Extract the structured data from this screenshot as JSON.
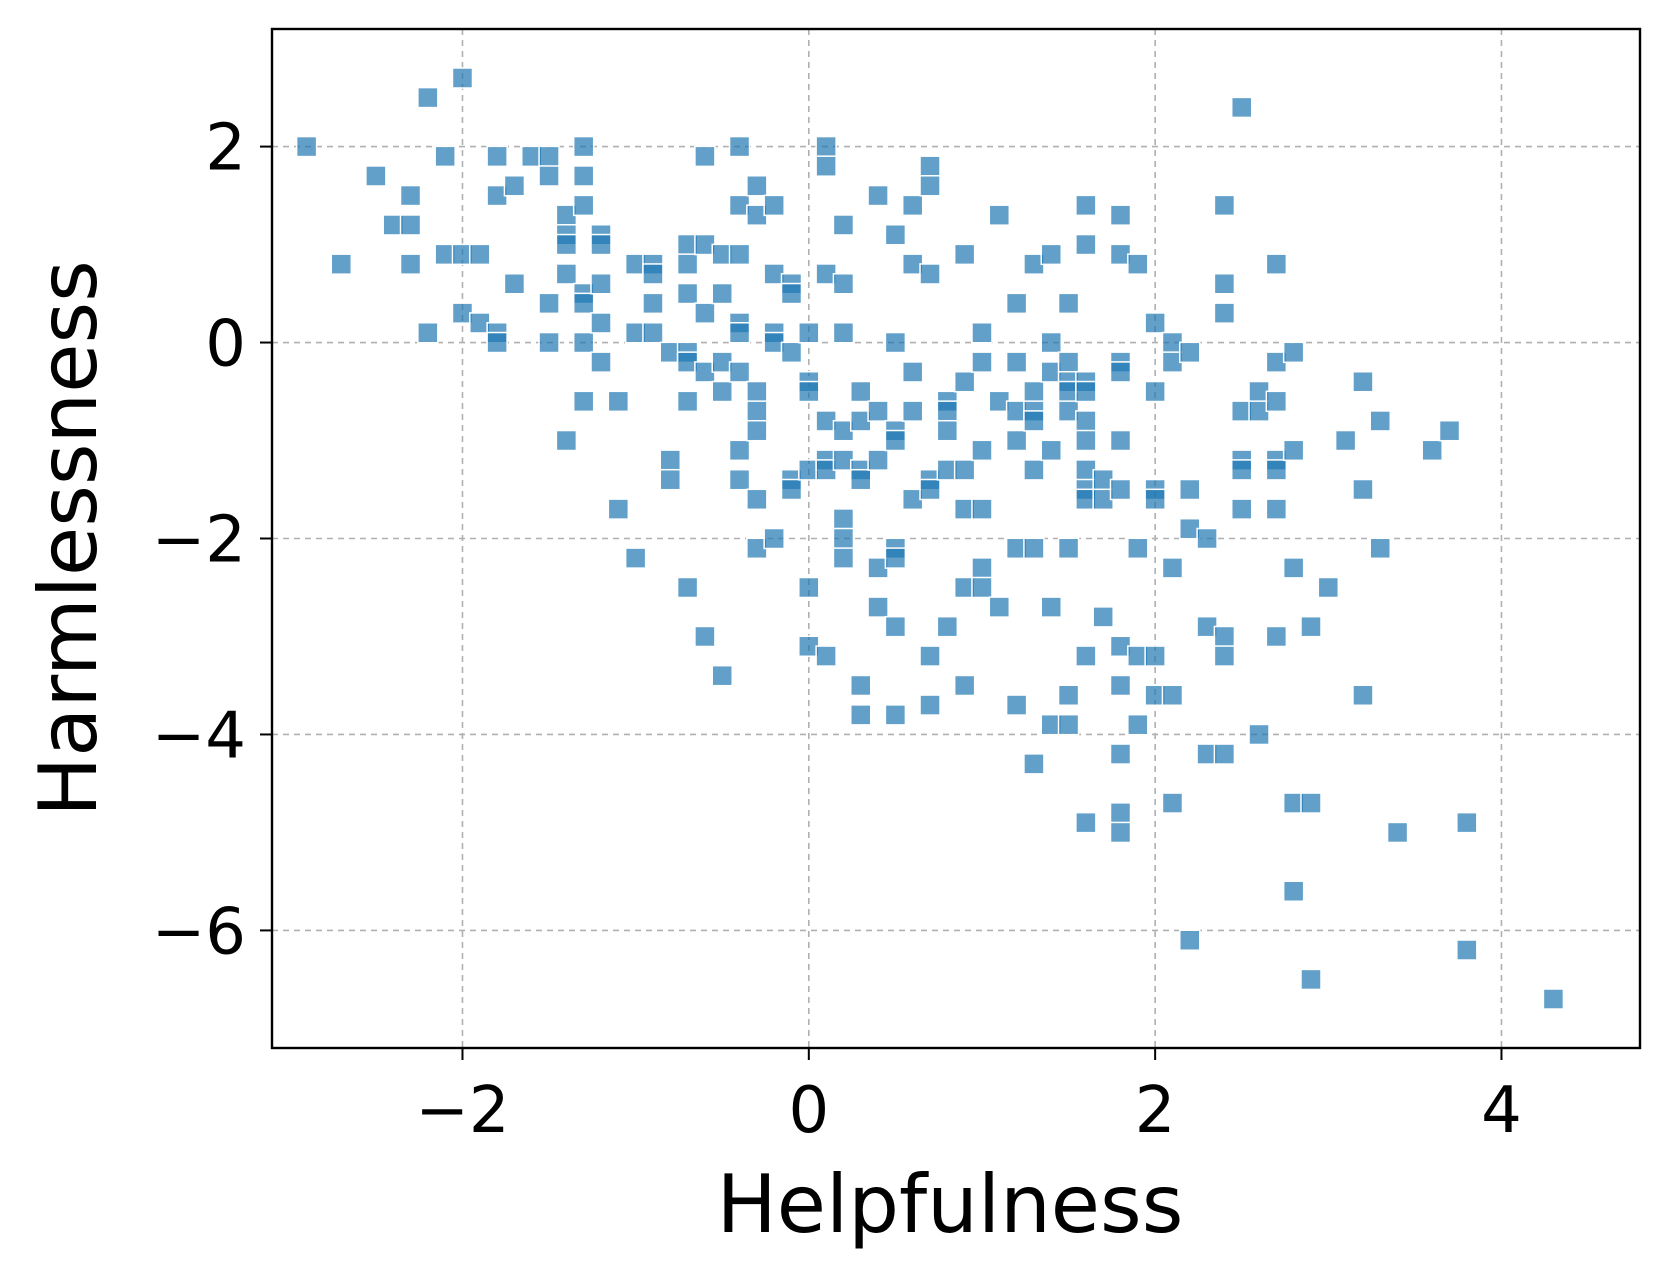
{
  "chart_data": {
    "type": "scatter",
    "xlabel": "Helpfulness",
    "ylabel": "Harmlessness",
    "xlim": [
      -3.1,
      4.8
    ],
    "ylim": [
      -7.2,
      3.2
    ],
    "xticks": [
      -2,
      0,
      2,
      4
    ],
    "yticks": [
      2,
      0,
      -2,
      -4,
      -6
    ],
    "xtick_labels": [
      "−2",
      "0",
      "2",
      "4"
    ],
    "ytick_labels": [
      "2",
      "0",
      "−2",
      "−4",
      "−6"
    ],
    "grid": true,
    "marker": "square",
    "color": "#1f77b4",
    "alpha": 0.7,
    "points": [
      [
        -2.9,
        2.0
      ],
      [
        -2.7,
        0.8
      ],
      [
        -2.5,
        1.7
      ],
      [
        -2.4,
        1.2
      ],
      [
        -2.3,
        1.5
      ],
      [
        -2.3,
        1.2
      ],
      [
        -2.3,
        0.8
      ],
      [
        -2.2,
        2.5
      ],
      [
        -2.2,
        0.1
      ],
      [
        -2.1,
        1.9
      ],
      [
        -2.1,
        0.9
      ],
      [
        -2.0,
        2.7
      ],
      [
        -2.0,
        0.9
      ],
      [
        -2.0,
        0.3
      ],
      [
        -1.9,
        0.9
      ],
      [
        -1.9,
        0.2
      ],
      [
        -1.8,
        1.9
      ],
      [
        -1.8,
        1.5
      ],
      [
        -1.8,
        0.1
      ],
      [
        -1.8,
        0.0
      ],
      [
        -1.7,
        1.6
      ],
      [
        -1.7,
        0.6
      ],
      [
        -1.6,
        1.9
      ],
      [
        -1.5,
        1.9
      ],
      [
        -1.5,
        1.7
      ],
      [
        -1.5,
        0.4
      ],
      [
        -1.5,
        0.0
      ],
      [
        -1.4,
        1.3
      ],
      [
        -1.4,
        1.1
      ],
      [
        -1.4,
        1.0
      ],
      [
        -1.4,
        0.7
      ],
      [
        -1.4,
        -1.0
      ],
      [
        -1.3,
        2.0
      ],
      [
        -1.3,
        1.7
      ],
      [
        -1.3,
        1.4
      ],
      [
        -1.3,
        0.5
      ],
      [
        -1.3,
        0.4
      ],
      [
        -1.3,
        0.0
      ],
      [
        -1.3,
        -0.6
      ],
      [
        -1.2,
        1.1
      ],
      [
        -1.2,
        1.0
      ],
      [
        -1.2,
        0.6
      ],
      [
        -1.2,
        0.2
      ],
      [
        -1.2,
        -0.2
      ],
      [
        -1.1,
        -0.6
      ],
      [
        -1.1,
        -1.7
      ],
      [
        -1.0,
        0.8
      ],
      [
        -1.0,
        0.1
      ],
      [
        -1.0,
        -2.2
      ],
      [
        -0.9,
        0.8
      ],
      [
        -0.9,
        0.7
      ],
      [
        -0.9,
        0.4
      ],
      [
        -0.9,
        0.1
      ],
      [
        -0.8,
        -0.1
      ],
      [
        -0.8,
        -1.2
      ],
      [
        -0.8,
        -1.4
      ],
      [
        -0.7,
        1.0
      ],
      [
        -0.7,
        0.8
      ],
      [
        -0.7,
        0.5
      ],
      [
        -0.7,
        -0.1
      ],
      [
        -0.7,
        -0.2
      ],
      [
        -0.7,
        -0.6
      ],
      [
        -0.7,
        -2.5
      ],
      [
        -0.6,
        1.9
      ],
      [
        -0.6,
        1.0
      ],
      [
        -0.6,
        0.3
      ],
      [
        -0.6,
        -0.3
      ],
      [
        -0.6,
        -3.0
      ],
      [
        -0.5,
        0.9
      ],
      [
        -0.5,
        0.5
      ],
      [
        -0.5,
        -0.2
      ],
      [
        -0.5,
        -0.5
      ],
      [
        -0.5,
        -3.4
      ],
      [
        -0.4,
        2.0
      ],
      [
        -0.4,
        1.4
      ],
      [
        -0.4,
        0.9
      ],
      [
        -0.4,
        0.2
      ],
      [
        -0.4,
        0.1
      ],
      [
        -0.4,
        -0.3
      ],
      [
        -0.4,
        -1.1
      ],
      [
        -0.4,
        -1.4
      ],
      [
        -0.3,
        1.6
      ],
      [
        -0.3,
        1.3
      ],
      [
        -0.3,
        -0.5
      ],
      [
        -0.3,
        -0.7
      ],
      [
        -0.3,
        -0.9
      ],
      [
        -0.3,
        -1.6
      ],
      [
        -0.3,
        -2.1
      ],
      [
        -0.2,
        1.4
      ],
      [
        -0.2,
        0.7
      ],
      [
        -0.2,
        0.1
      ],
      [
        -0.2,
        0.0
      ],
      [
        -0.2,
        -2.0
      ],
      [
        -0.1,
        0.6
      ],
      [
        -0.1,
        0.5
      ],
      [
        -0.1,
        -0.1
      ],
      [
        -0.1,
        -1.4
      ],
      [
        -0.1,
        -1.5
      ],
      [
        0.0,
        0.1
      ],
      [
        0.0,
        -0.4
      ],
      [
        0.0,
        -0.5
      ],
      [
        0.0,
        -1.3
      ],
      [
        0.0,
        -2.5
      ],
      [
        0.0,
        -3.1
      ],
      [
        0.1,
        2.0
      ],
      [
        0.1,
        1.8
      ],
      [
        0.1,
        0.7
      ],
      [
        0.1,
        -0.8
      ],
      [
        0.1,
        -1.2
      ],
      [
        0.1,
        -1.3
      ],
      [
        0.1,
        -3.2
      ],
      [
        0.2,
        1.2
      ],
      [
        0.2,
        0.6
      ],
      [
        0.2,
        0.1
      ],
      [
        0.2,
        -0.9
      ],
      [
        0.2,
        -1.2
      ],
      [
        0.2,
        -1.8
      ],
      [
        0.2,
        -2.0
      ],
      [
        0.2,
        -2.2
      ],
      [
        0.3,
        -0.5
      ],
      [
        0.3,
        -0.8
      ],
      [
        0.3,
        -1.3
      ],
      [
        0.3,
        -1.4
      ],
      [
        0.3,
        -3.5
      ],
      [
        0.3,
        -3.8
      ],
      [
        0.4,
        1.5
      ],
      [
        0.4,
        -0.7
      ],
      [
        0.4,
        -1.2
      ],
      [
        0.4,
        -2.3
      ],
      [
        0.4,
        -2.7
      ],
      [
        0.5,
        1.1
      ],
      [
        0.5,
        0.0
      ],
      [
        0.5,
        -0.9
      ],
      [
        0.5,
        -1.0
      ],
      [
        0.5,
        -2.1
      ],
      [
        0.5,
        -2.2
      ],
      [
        0.5,
        -2.9
      ],
      [
        0.5,
        -3.8
      ],
      [
        0.6,
        1.4
      ],
      [
        0.6,
        0.8
      ],
      [
        0.6,
        -0.3
      ],
      [
        0.6,
        -0.7
      ],
      [
        0.6,
        -1.6
      ],
      [
        0.7,
        1.8
      ],
      [
        0.7,
        1.6
      ],
      [
        0.7,
        0.7
      ],
      [
        0.7,
        -1.4
      ],
      [
        0.7,
        -1.5
      ],
      [
        0.7,
        -3.2
      ],
      [
        0.7,
        -3.7
      ],
      [
        0.8,
        -0.6
      ],
      [
        0.8,
        -0.7
      ],
      [
        0.8,
        -0.9
      ],
      [
        0.8,
        -1.3
      ],
      [
        0.8,
        -2.9
      ],
      [
        0.9,
        0.9
      ],
      [
        0.9,
        -0.4
      ],
      [
        0.9,
        -1.3
      ],
      [
        0.9,
        -1.7
      ],
      [
        0.9,
        -2.5
      ],
      [
        0.9,
        -3.5
      ],
      [
        1.0,
        0.1
      ],
      [
        1.0,
        -0.2
      ],
      [
        1.0,
        -1.1
      ],
      [
        1.0,
        -1.7
      ],
      [
        1.0,
        -2.3
      ],
      [
        1.0,
        -2.5
      ],
      [
        1.1,
        1.3
      ],
      [
        1.1,
        -0.6
      ],
      [
        1.1,
        -2.7
      ],
      [
        1.2,
        0.4
      ],
      [
        1.2,
        -0.2
      ],
      [
        1.2,
        -0.7
      ],
      [
        1.2,
        -1.0
      ],
      [
        1.2,
        -2.1
      ],
      [
        1.2,
        -3.7
      ],
      [
        1.3,
        0.8
      ],
      [
        1.3,
        -0.5
      ],
      [
        1.3,
        -0.7
      ],
      [
        1.3,
        -0.8
      ],
      [
        1.3,
        -1.3
      ],
      [
        1.3,
        -2.1
      ],
      [
        1.3,
        -4.3
      ],
      [
        1.4,
        0.9
      ],
      [
        1.4,
        0.0
      ],
      [
        1.4,
        -0.3
      ],
      [
        1.4,
        -1.1
      ],
      [
        1.4,
        -2.7
      ],
      [
        1.4,
        -3.9
      ],
      [
        1.5,
        0.4
      ],
      [
        1.5,
        -0.2
      ],
      [
        1.5,
        -0.4
      ],
      [
        1.5,
        -0.5
      ],
      [
        1.5,
        -0.7
      ],
      [
        1.5,
        -2.1
      ],
      [
        1.5,
        -3.6
      ],
      [
        1.5,
        -3.9
      ],
      [
        1.6,
        1.4
      ],
      [
        1.6,
        1.0
      ],
      [
        1.6,
        -0.4
      ],
      [
        1.6,
        -0.5
      ],
      [
        1.6,
        -0.8
      ],
      [
        1.6,
        -1.0
      ],
      [
        1.6,
        -1.3
      ],
      [
        1.6,
        -1.5
      ],
      [
        1.6,
        -1.6
      ],
      [
        1.6,
        -3.2
      ],
      [
        1.6,
        -4.9
      ],
      [
        1.7,
        -1.4
      ],
      [
        1.7,
        -1.6
      ],
      [
        1.7,
        -2.8
      ],
      [
        1.8,
        1.3
      ],
      [
        1.8,
        0.9
      ],
      [
        1.8,
        -0.2
      ],
      [
        1.8,
        -0.3
      ],
      [
        1.8,
        -1.0
      ],
      [
        1.8,
        -1.5
      ],
      [
        1.8,
        -3.1
      ],
      [
        1.8,
        -3.5
      ],
      [
        1.8,
        -4.2
      ],
      [
        1.8,
        -4.8
      ],
      [
        1.8,
        -5.0
      ],
      [
        1.9,
        0.8
      ],
      [
        1.9,
        -2.1
      ],
      [
        1.9,
        -3.2
      ],
      [
        1.9,
        -3.9
      ],
      [
        2.0,
        0.2
      ],
      [
        2.0,
        -0.5
      ],
      [
        2.0,
        -1.5
      ],
      [
        2.0,
        -1.6
      ],
      [
        2.0,
        -3.2
      ],
      [
        2.0,
        -3.6
      ],
      [
        2.1,
        0.0
      ],
      [
        2.1,
        -0.2
      ],
      [
        2.1,
        -2.3
      ],
      [
        2.1,
        -3.6
      ],
      [
        2.1,
        -4.7
      ],
      [
        2.2,
        -0.1
      ],
      [
        2.2,
        -1.5
      ],
      [
        2.2,
        -1.9
      ],
      [
        2.2,
        -6.1
      ],
      [
        2.3,
        -2.0
      ],
      [
        2.3,
        -2.9
      ],
      [
        2.3,
        -4.2
      ],
      [
        2.4,
        1.4
      ],
      [
        2.4,
        0.6
      ],
      [
        2.4,
        0.3
      ],
      [
        2.4,
        -3.0
      ],
      [
        2.4,
        -3.2
      ],
      [
        2.4,
        -4.2
      ],
      [
        2.5,
        2.4
      ],
      [
        2.5,
        -0.7
      ],
      [
        2.5,
        -1.2
      ],
      [
        2.5,
        -1.3
      ],
      [
        2.5,
        -1.7
      ],
      [
        2.6,
        -0.5
      ],
      [
        2.6,
        -0.7
      ],
      [
        2.6,
        -4.0
      ],
      [
        2.7,
        0.8
      ],
      [
        2.7,
        -0.2
      ],
      [
        2.7,
        -0.6
      ],
      [
        2.7,
        -1.2
      ],
      [
        2.7,
        -1.3
      ],
      [
        2.7,
        -1.7
      ],
      [
        2.7,
        -3.0
      ],
      [
        2.8,
        -0.1
      ],
      [
        2.8,
        -1.1
      ],
      [
        2.8,
        -2.3
      ],
      [
        2.8,
        -4.7
      ],
      [
        2.8,
        -5.6
      ],
      [
        2.9,
        -2.9
      ],
      [
        2.9,
        -4.7
      ],
      [
        2.9,
        -6.5
      ],
      [
        3.0,
        -2.5
      ],
      [
        3.1,
        -1.0
      ],
      [
        3.2,
        -0.4
      ],
      [
        3.2,
        -1.5
      ],
      [
        3.2,
        -3.6
      ],
      [
        3.3,
        -0.8
      ],
      [
        3.3,
        -2.1
      ],
      [
        3.4,
        -5.0
      ],
      [
        3.6,
        -1.1
      ],
      [
        3.7,
        -0.9
      ],
      [
        3.8,
        -4.9
      ],
      [
        3.8,
        -6.2
      ],
      [
        4.3,
        -6.7
      ]
    ]
  }
}
